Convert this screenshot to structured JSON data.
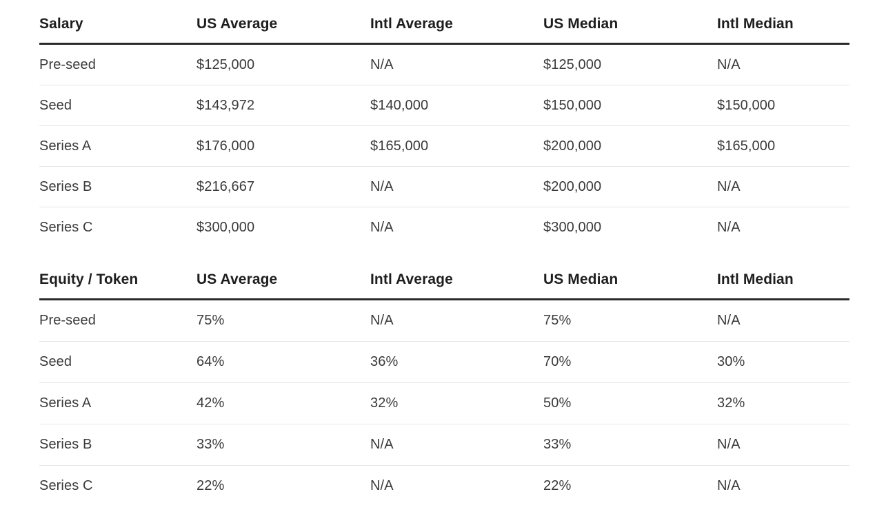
{
  "colors": {
    "background": "#ffffff",
    "header_text": "#1e1e1e",
    "body_text": "#3a3a3a",
    "header_rule": "#2a2a2a",
    "row_divider": "#e6e6e6"
  },
  "chart_data": [
    {
      "type": "table",
      "title": "Salary",
      "header": [
        "Salary",
        "US Average",
        "Intl Average",
        "US Median",
        "Intl Median"
      ],
      "rows": [
        [
          "Pre-seed",
          "$125,000",
          "N/A",
          "$125,000",
          "N/A"
        ],
        [
          "Seed",
          "$143,972",
          "$140,000",
          "$150,000",
          "$150,000"
        ],
        [
          "Series A",
          "$176,000",
          "$165,000",
          "$200,000",
          "$165,000"
        ],
        [
          "Series B",
          "$216,667",
          "N/A",
          "$200,000",
          "N/A"
        ],
        [
          "Series C",
          "$300,000",
          "N/A",
          "$300,000",
          "N/A"
        ]
      ]
    },
    {
      "type": "table",
      "title": "Equity / Token",
      "header": [
        "Equity / Token",
        "US Average",
        "Intl Average",
        "US Median",
        "Intl Median"
      ],
      "rows": [
        [
          "Pre-seed",
          "75%",
          "N/A",
          "75%",
          "N/A"
        ],
        [
          "Seed",
          "64%",
          "36%",
          "70%",
          "30%"
        ],
        [
          "Series A",
          "42%",
          "32%",
          "50%",
          "32%"
        ],
        [
          "Series B",
          "33%",
          "N/A",
          "33%",
          "N/A"
        ],
        [
          "Series C",
          "22%",
          "N/A",
          "22%",
          "N/A"
        ]
      ]
    }
  ]
}
